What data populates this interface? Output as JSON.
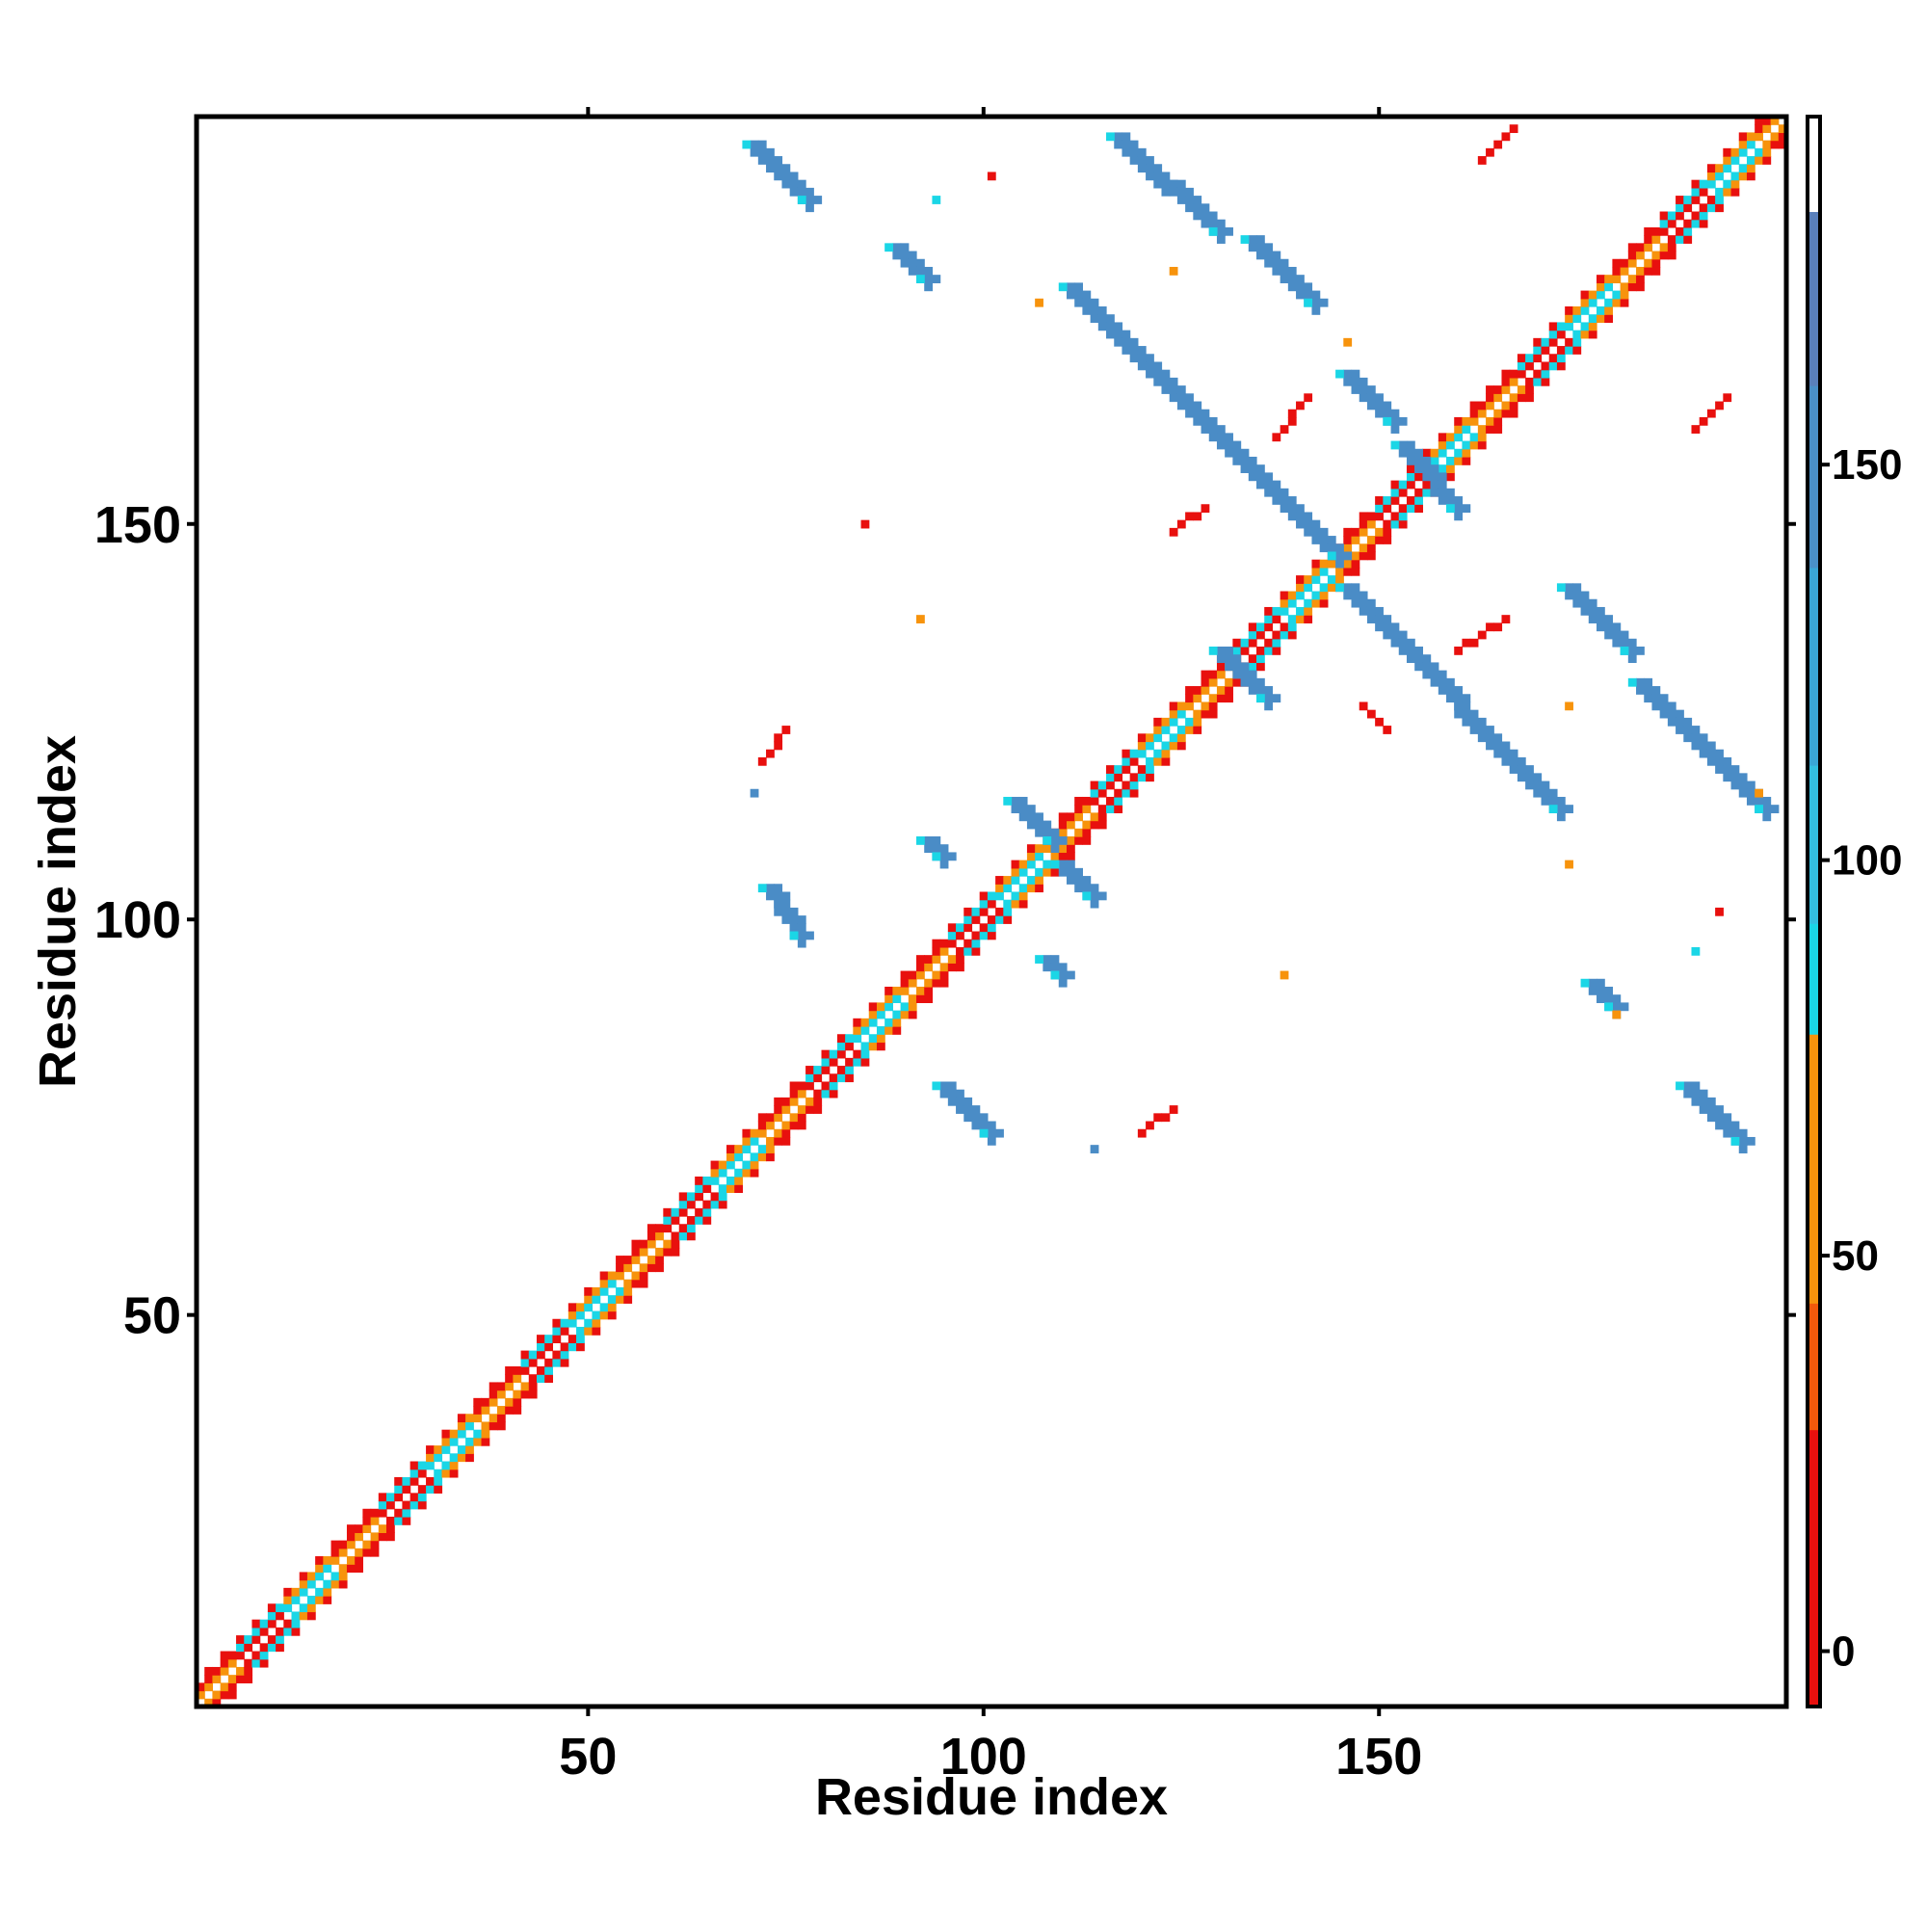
{
  "chart_data": {
    "type": "heatmap",
    "title": "",
    "xlabel": "Residue index",
    "ylabel": "Residue index",
    "xlim": [
      1,
      201
    ],
    "ylim": [
      1,
      201
    ],
    "x_ticks": [
      50,
      100,
      150
    ],
    "y_ticks": [
      50,
      100,
      150
    ],
    "grid": false,
    "colorbar": {
      "range": [
        -7,
        194
      ],
      "ticks": [
        0,
        50,
        100,
        150
      ],
      "bands": [
        {
          "from": -7,
          "to": 28,
          "color": "#e8100e"
        },
        {
          "from": 28,
          "to": 44,
          "color": "#f2590b"
        },
        {
          "from": 44,
          "to": 78,
          "color": "#f7930c"
        },
        {
          "from": 78,
          "to": 92,
          "color": "#1ad6e6"
        },
        {
          "from": 92,
          "to": 112,
          "color": "#33bfe0"
        },
        {
          "from": 112,
          "to": 137,
          "color": "#3aa6d6"
        },
        {
          "from": 137,
          "to": 160,
          "color": "#4a90c8"
        },
        {
          "from": 160,
          "to": 182,
          "color": "#5a80bb"
        },
        {
          "from": 182,
          "to": 194,
          "color": "#ffffff"
        }
      ]
    },
    "palette": {
      "red": "#e8100e",
      "orange_red": "#f2590b",
      "orange": "#f7930c",
      "cyan": "#1ad6e6",
      "blue": "#4a8cc6",
      "white": "#ffffff"
    },
    "diagonal_bands": {
      "range": [
        1,
        201
      ],
      "near_diagonal_colors": [
        "orange",
        "red",
        "cyan"
      ]
    },
    "contact_segments": [
      {
        "x1": 71,
        "y1": 198,
        "x2": 78,
        "y2": 191,
        "color": "blue"
      },
      {
        "x1": 117,
        "y1": 199,
        "x2": 130,
        "y2": 187,
        "color": "blue"
      },
      {
        "x1": 134,
        "y1": 186,
        "x2": 142,
        "y2": 178,
        "color": "blue"
      },
      {
        "x1": 89,
        "y1": 185,
        "x2": 93,
        "y2": 181,
        "color": "blue"
      },
      {
        "x1": 111,
        "y1": 180,
        "x2": 145,
        "y2": 146,
        "color": "blue"
      },
      {
        "x1": 146,
        "y1": 142,
        "x2": 173,
        "y2": 114,
        "color": "blue"
      },
      {
        "x1": 146,
        "y1": 169,
        "x2": 152,
        "y2": 163,
        "color": "blue"
      },
      {
        "x1": 153,
        "y1": 160,
        "x2": 160,
        "y2": 152,
        "color": "blue"
      },
      {
        "x1": 174,
        "y1": 142,
        "x2": 182,
        "y2": 134,
        "color": "blue"
      },
      {
        "x1": 183,
        "y1": 130,
        "x2": 199,
        "y2": 114,
        "color": "blue"
      },
      {
        "x1": 73,
        "y1": 104,
        "x2": 77,
        "y2": 98,
        "color": "blue"
      },
      {
        "x1": 104,
        "y1": 115,
        "x2": 109,
        "y2": 110,
        "color": "blue"
      },
      {
        "x1": 110,
        "y1": 107,
        "x2": 114,
        "y2": 103,
        "color": "blue"
      },
      {
        "x1": 95,
        "y1": 79,
        "x2": 101,
        "y2": 73,
        "color": "blue"
      },
      {
        "x1": 189,
        "y1": 79,
        "x2": 196,
        "y2": 72,
        "color": "blue"
      },
      {
        "x1": 177,
        "y1": 92,
        "x2": 180,
        "y2": 89,
        "color": "blue"
      },
      {
        "x1": 130,
        "y1": 134,
        "x2": 136,
        "y2": 128,
        "color": "blue"
      },
      {
        "x1": 93,
        "y1": 110,
        "x2": 95,
        "y2": 108,
        "color": "blue"
      },
      {
        "x1": 108,
        "y1": 95,
        "x2": 110,
        "y2": 93,
        "color": "blue"
      },
      {
        "x1": 148,
        "y1": 127,
        "x2": 151,
        "y2": 124,
        "color": "red"
      },
      {
        "x1": 72,
        "y1": 120,
        "x2": 75,
        "y2": 124,
        "color": "red"
      },
      {
        "x1": 163,
        "y1": 196,
        "x2": 167,
        "y2": 200,
        "color": "red"
      },
      {
        "x1": 190,
        "y1": 162,
        "x2": 194,
        "y2": 166,
        "color": "red"
      },
      {
        "x1": 137,
        "y1": 161,
        "x2": 141,
        "y2": 166,
        "color": "red"
      },
      {
        "x1": 124,
        "y1": 149,
        "x2": 128,
        "y2": 152,
        "color": "red"
      },
      {
        "x1": 160,
        "y1": 134,
        "x2": 166,
        "y2": 138,
        "color": "red"
      },
      {
        "x1": 120,
        "y1": 73,
        "x2": 124,
        "y2": 76,
        "color": "red"
      }
    ],
    "contact_points": [
      {
        "x": 101,
        "y": 194,
        "color": "red"
      },
      {
        "x": 94,
        "y": 191,
        "color": "cyan"
      },
      {
        "x": 124,
        "y": 182,
        "color": "orange"
      },
      {
        "x": 107,
        "y": 178,
        "color": "orange"
      },
      {
        "x": 146,
        "y": 173,
        "color": "orange"
      },
      {
        "x": 92,
        "y": 138,
        "color": "orange"
      },
      {
        "x": 71,
        "y": 116,
        "color": "blue"
      },
      {
        "x": 174,
        "y": 107,
        "color": "orange"
      },
      {
        "x": 193,
        "y": 101,
        "color": "red"
      },
      {
        "x": 190,
        "y": 96,
        "color": "cyan"
      },
      {
        "x": 138,
        "y": 93,
        "color": "orange"
      },
      {
        "x": 114,
        "y": 71,
        "color": "blue"
      },
      {
        "x": 174,
        "y": 127,
        "color": "orange"
      },
      {
        "x": 180,
        "y": 88,
        "color": "orange"
      },
      {
        "x": 85,
        "y": 150,
        "color": "red"
      },
      {
        "x": 198,
        "y": 116,
        "color": "orange"
      }
    ]
  }
}
